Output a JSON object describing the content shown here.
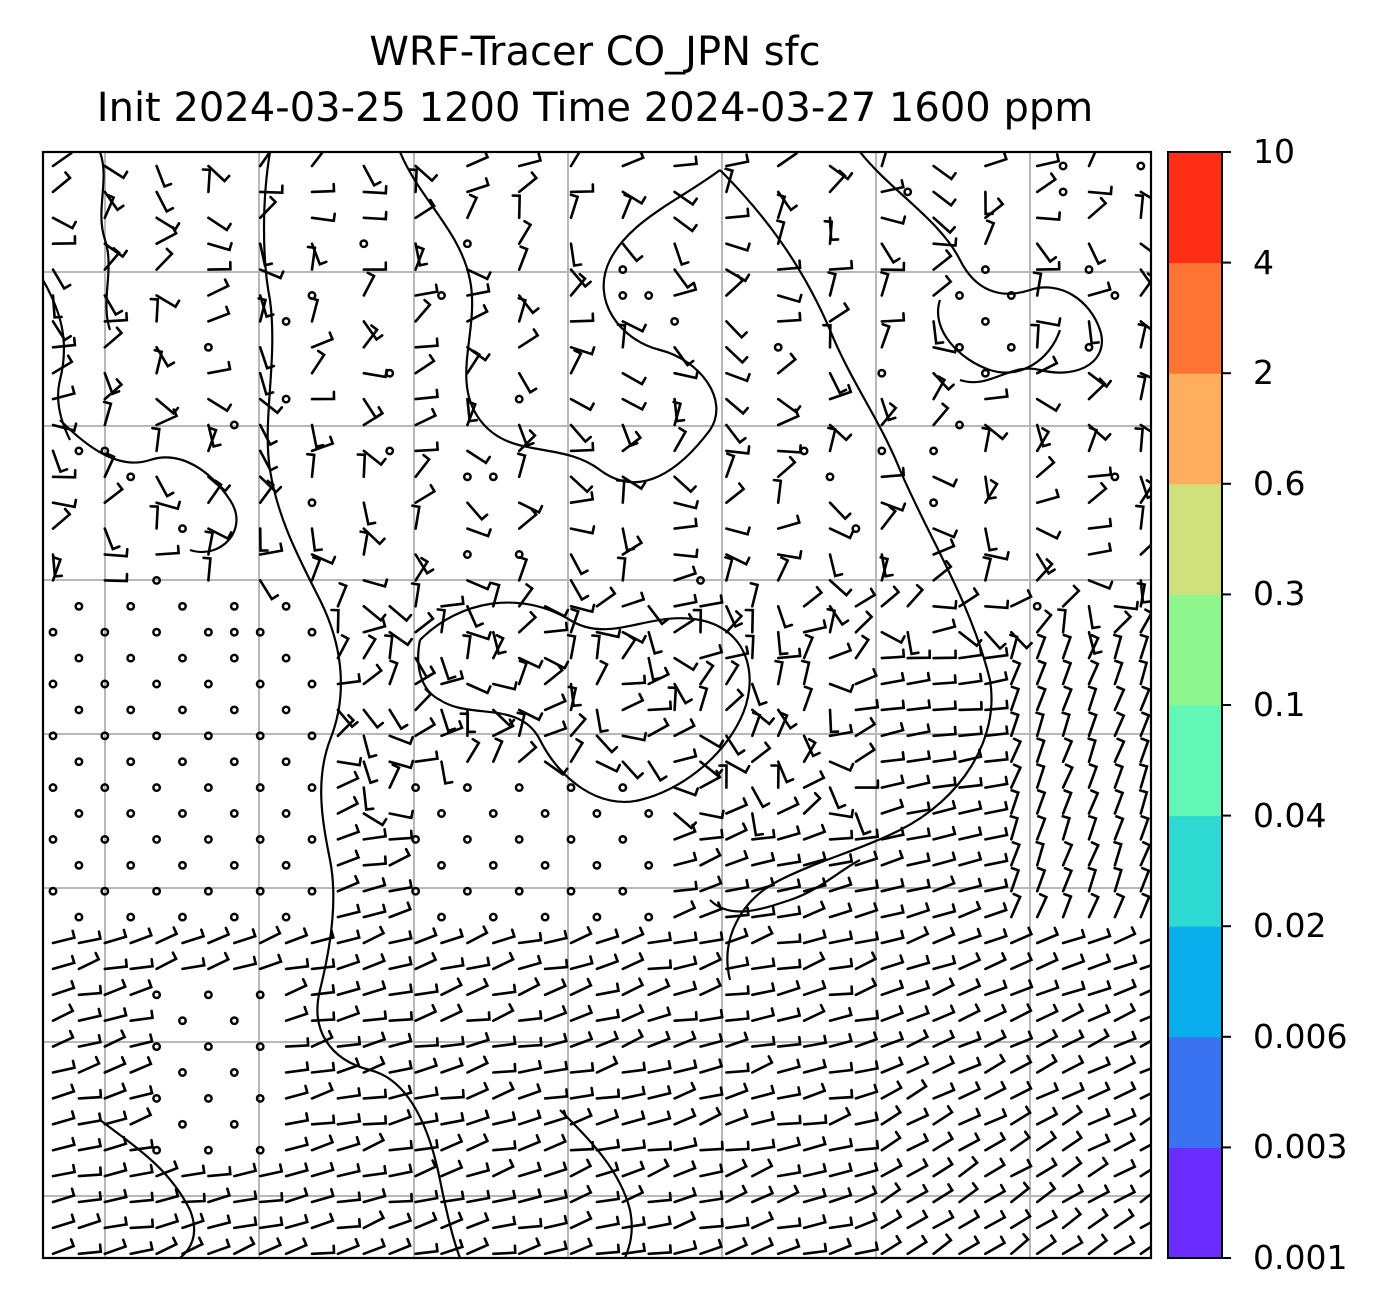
{
  "title": {
    "line1": "WRF-Tracer CO_JPN sfc",
    "line2": "Init 2024-03-25 1200 Time 2024-03-27 1600 ppm"
  },
  "colorbar": {
    "levels": [
      "0.001",
      "0.003",
      "0.006",
      "0.02",
      "0.04",
      "0.1",
      "0.3",
      "0.6",
      "2",
      "4",
      "10"
    ],
    "colors": [
      "#6a2cff",
      "#3a73f2",
      "#08afec",
      "#2ed9d2",
      "#62f7b6",
      "#8ff58f",
      "#cfe07c",
      "#ffae5d",
      "#ff7333",
      "#ff2e14"
    ]
  },
  "map": {
    "gridlines": true,
    "wind_barbs": true,
    "coastlines": true
  }
}
